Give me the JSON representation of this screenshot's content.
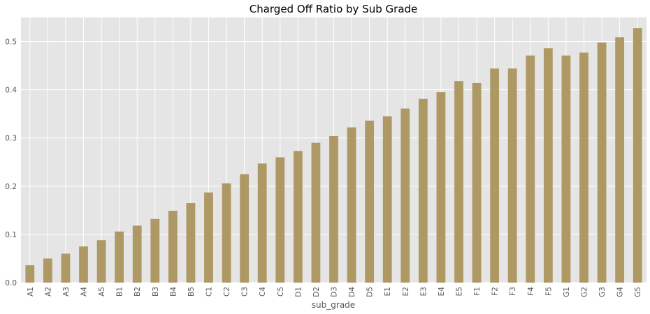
{
  "chart_data": {
    "type": "bar",
    "title": "Charged Off Ratio by Sub Grade",
    "xlabel": "sub_grade",
    "ylabel": "",
    "ylim": [
      0,
      0.55
    ],
    "yticks": [
      "0.0",
      "0.1",
      "0.2",
      "0.3",
      "0.4",
      "0.5"
    ],
    "grid": true,
    "bar_color": "#ae9965",
    "background_color": "#e5e5e5",
    "categories": [
      "A1",
      "A2",
      "A3",
      "A4",
      "A5",
      "B1",
      "B2",
      "B3",
      "B4",
      "B5",
      "C1",
      "C2",
      "C3",
      "C4",
      "C5",
      "D1",
      "D2",
      "D3",
      "D4",
      "D5",
      "E1",
      "E2",
      "E3",
      "E4",
      "E5",
      "F1",
      "F2",
      "F3",
      "F4",
      "F5",
      "G1",
      "G2",
      "G3",
      "G4",
      "G5"
    ],
    "values": [
      0.036,
      0.05,
      0.06,
      0.075,
      0.088,
      0.106,
      0.118,
      0.132,
      0.149,
      0.165,
      0.187,
      0.206,
      0.225,
      0.247,
      0.26,
      0.273,
      0.29,
      0.304,
      0.322,
      0.336,
      0.345,
      0.361,
      0.381,
      0.395,
      0.418,
      0.414,
      0.444,
      0.444,
      0.471,
      0.486,
      0.471,
      0.477,
      0.498,
      0.509,
      0.528
    ]
  }
}
